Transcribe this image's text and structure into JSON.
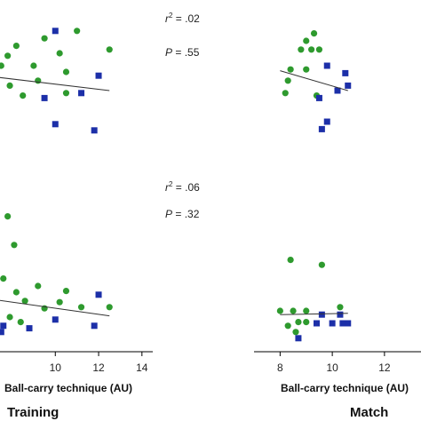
{
  "colors": {
    "green": "#2e9a2e",
    "blue": "#1c2fa8",
    "line": "#333333",
    "axis": "#000000"
  },
  "chart_data": [
    {
      "type": "scatter",
      "panel": "training-top",
      "stats": {
        "r2_label": "r",
        "r2_exp": "2",
        "r2_value": " = .02",
        "p_label": "P",
        "p_value": " = .55"
      },
      "xlim": [
        7.2,
        14.5
      ],
      "ylim": [
        0,
        10
      ],
      "series": [
        {
          "marker": "circle",
          "color": "green",
          "points": [
            [
              9.5,
              8.2
            ],
            [
              10.2,
              7.0
            ],
            [
              11.0,
              8.8
            ],
            [
              12.5,
              7.3
            ],
            [
              7.8,
              6.8
            ],
            [
              7.5,
              6.0
            ],
            [
              8.2,
              7.6
            ],
            [
              9.0,
              6.0
            ],
            [
              10.5,
              5.5
            ],
            [
              9.2,
              4.8
            ],
            [
              7.9,
              4.4
            ],
            [
              8.5,
              3.6
            ],
            [
              10.5,
              3.8
            ]
          ]
        },
        {
          "marker": "square",
          "color": "blue",
          "points": [
            [
              10.0,
              8.8
            ],
            [
              12.0,
              5.2
            ],
            [
              9.5,
              3.4
            ],
            [
              11.2,
              3.8
            ],
            [
              10.0,
              1.3
            ],
            [
              11.8,
              0.8
            ]
          ]
        }
      ],
      "trend": [
        [
          7.2,
          5.1
        ],
        [
          12.5,
          4.0
        ]
      ]
    },
    {
      "type": "scatter",
      "panel": "match-top",
      "xlim": [
        7.0,
        13.4
      ],
      "ylim": [
        0,
        10
      ],
      "series": [
        {
          "marker": "circle",
          "color": "green",
          "points": [
            [
              9.0,
              8.0
            ],
            [
              9.3,
              8.6
            ],
            [
              8.8,
              7.3
            ],
            [
              9.2,
              7.3
            ],
            [
              9.5,
              7.3
            ],
            [
              8.4,
              5.7
            ],
            [
              9.0,
              5.7
            ],
            [
              8.3,
              4.8
            ],
            [
              8.2,
              3.8
            ],
            [
              9.4,
              3.6
            ]
          ]
        },
        {
          "marker": "square",
          "color": "blue",
          "points": [
            [
              9.8,
              6.0
            ],
            [
              10.5,
              5.4
            ],
            [
              10.6,
              4.4
            ],
            [
              10.2,
              4.0
            ],
            [
              9.5,
              3.4
            ],
            [
              9.8,
              1.5
            ],
            [
              9.6,
              0.9
            ]
          ]
        }
      ],
      "trend": [
        [
          8.0,
          5.6
        ],
        [
          10.6,
          4.0
        ]
      ]
    },
    {
      "type": "scatter",
      "panel": "training-bottom",
      "stats": {
        "r2_label": "r",
        "r2_exp": "2",
        "r2_value": " = .06",
        "p_label": "P",
        "p_value": " = .32"
      },
      "xlim": [
        7.2,
        14.5
      ],
      "ylim": [
        0,
        10
      ],
      "xticks": [
        10,
        12,
        14
      ],
      "xlabel": "Ball-carry technique (AU)",
      "panel_label": "Training",
      "series": [
        {
          "marker": "circle",
          "color": "green",
          "points": [
            [
              7.8,
              9.6
            ],
            [
              8.1,
              7.3
            ],
            [
              7.6,
              4.6
            ],
            [
              8.2,
              3.5
            ],
            [
              9.2,
              4.0
            ],
            [
              10.5,
              3.6
            ],
            [
              8.6,
              2.8
            ],
            [
              9.5,
              2.2
            ],
            [
              10.2,
              2.7
            ],
            [
              11.2,
              2.3
            ],
            [
              12.5,
              2.3
            ],
            [
              7.9,
              1.5
            ],
            [
              8.4,
              1.1
            ]
          ]
        },
        {
          "marker": "square",
          "color": "blue",
          "points": [
            [
              12.0,
              3.3
            ],
            [
              10.0,
              1.3
            ],
            [
              11.8,
              0.8
            ],
            [
              8.8,
              0.6
            ],
            [
              7.6,
              0.8
            ],
            [
              7.5,
              0.3
            ]
          ]
        }
      ],
      "trend": [
        [
          7.2,
          2.9
        ],
        [
          12.5,
          1.6
        ]
      ]
    },
    {
      "type": "scatter",
      "panel": "match-bottom",
      "xlim": [
        7.0,
        13.4
      ],
      "ylim": [
        0,
        10
      ],
      "xticks": [
        8,
        10,
        12
      ],
      "xlabel": "Ball-carry technique (AU)",
      "panel_label": "Match",
      "series": [
        {
          "marker": "circle",
          "color": "green",
          "points": [
            [
              8.4,
              6.1
            ],
            [
              9.6,
              5.7
            ],
            [
              10.3,
              2.3
            ],
            [
              8.0,
              2.0
            ],
            [
              8.5,
              2.0
            ],
            [
              9.0,
              2.0
            ],
            [
              8.7,
              1.1
            ],
            [
              9.0,
              1.1
            ],
            [
              8.3,
              0.8
            ],
            [
              8.6,
              0.3
            ]
          ]
        },
        {
          "marker": "square",
          "color": "blue",
          "points": [
            [
              9.6,
              1.7
            ],
            [
              10.3,
              1.7
            ],
            [
              9.4,
              1.0
            ],
            [
              10.0,
              1.0
            ],
            [
              10.4,
              1.0
            ],
            [
              10.6,
              1.0
            ],
            [
              8.7,
              -0.2
            ]
          ]
        }
      ],
      "trend": [
        [
          8.0,
          1.7
        ],
        [
          10.6,
          1.8
        ]
      ]
    }
  ]
}
